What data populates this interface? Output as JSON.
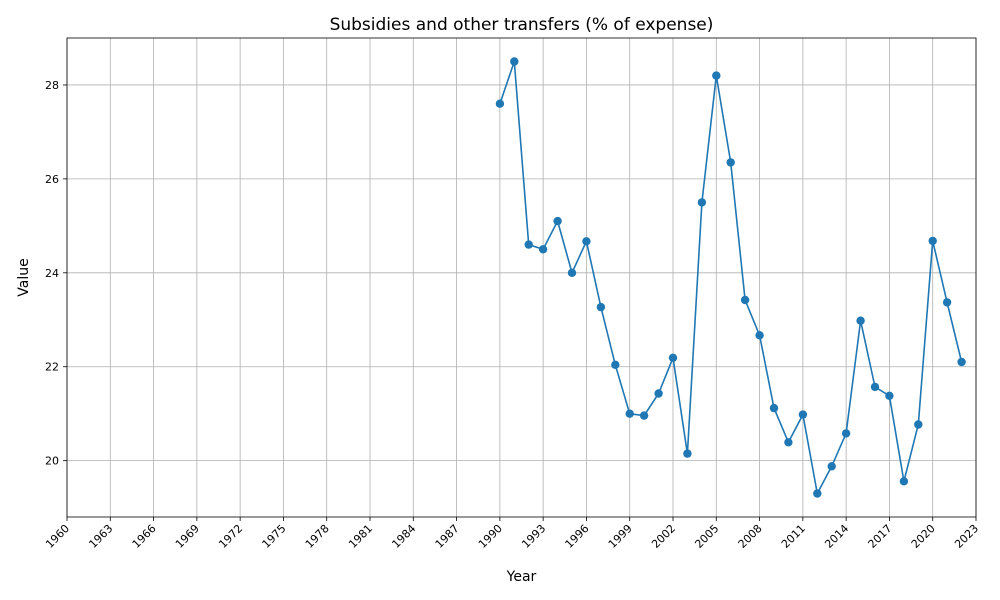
{
  "chart_data": {
    "type": "line",
    "title": "Subsidies and other transfers (% of expense)",
    "xlabel": "Year",
    "ylabel": "Value",
    "xlim": [
      1960,
      2023
    ],
    "ylim": [
      18.8,
      29.0
    ],
    "x_ticks": [
      1960,
      1963,
      1966,
      1969,
      1972,
      1975,
      1978,
      1981,
      1984,
      1987,
      1990,
      1993,
      1996,
      1999,
      2002,
      2005,
      2008,
      2011,
      2014,
      2017,
      2020,
      2023
    ],
    "y_ticks": [
      20,
      22,
      24,
      26,
      28
    ],
    "grid": true,
    "color": "#1f77b4",
    "marker": "circle",
    "series": [
      {
        "x": [
          1990,
          1991,
          1992,
          1993,
          1994,
          1995,
          1996,
          1997,
          1998,
          1999,
          2000,
          2001,
          2002,
          2003,
          2004,
          2005,
          2006,
          2007,
          2008,
          2009,
          2010,
          2011,
          2012,
          2013,
          2014,
          2015,
          2016,
          2017,
          2018,
          2019,
          2020,
          2021,
          2022
        ],
        "values": [
          27.6,
          28.5,
          24.6,
          24.5,
          25.1,
          24.0,
          24.67,
          23.27,
          22.04,
          21.0,
          20.96,
          21.43,
          22.19,
          20.15,
          25.5,
          28.2,
          26.35,
          23.42,
          22.67,
          21.12,
          20.39,
          20.98,
          19.3,
          19.88,
          20.58,
          22.98,
          21.57,
          21.38,
          19.56,
          20.77,
          24.68,
          23.37,
          22.1
        ]
      }
    ]
  }
}
